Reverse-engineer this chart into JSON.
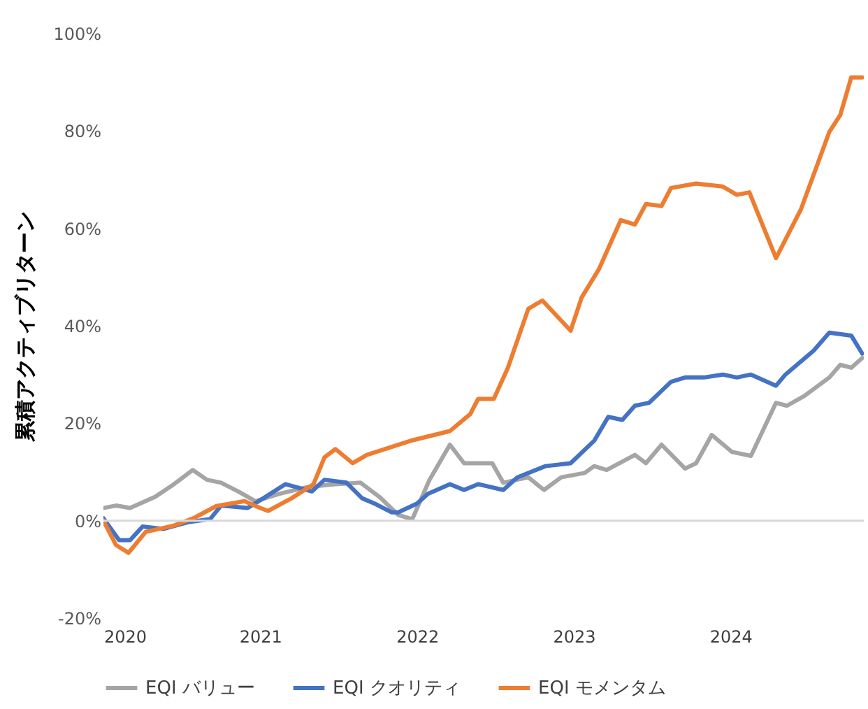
{
  "chart_data": {
    "type": "line",
    "ylabel": "累積アクティブリターン",
    "xlim": [
      2020,
      2024.85
    ],
    "xticks": [
      2020,
      2021,
      2022,
      2023,
      2024
    ],
    "ylim": [
      -20,
      100
    ],
    "yticks": [
      {
        "value": -20,
        "label": "-20%"
      },
      {
        "value": 0,
        "label": "0%"
      },
      {
        "value": 20,
        "label": "20%"
      },
      {
        "value": 40,
        "label": "40%"
      },
      {
        "value": 60,
        "label": "60%"
      },
      {
        "value": 80,
        "label": "80%"
      },
      {
        "value": 100,
        "label": "100%"
      }
    ],
    "grid": false,
    "legend": "bottom",
    "marker": "none",
    "line_style": "solid",
    "ref_lines": [
      {
        "axis": "y",
        "value": 0,
        "color": "#d9d9d9"
      }
    ],
    "series": [
      {
        "name": "EQI バリュー",
        "color": "#a5a5a5",
        "x": [
          2020.0,
          2020.08,
          2020.17,
          2020.33,
          2020.45,
          2020.57,
          2020.66,
          2020.75,
          2020.86,
          2020.97,
          2021.12,
          2021.3,
          2021.48,
          2021.64,
          2021.76,
          2021.88,
          2021.97,
          2022.08,
          2022.21,
          2022.3,
          2022.48,
          2022.55,
          2022.71,
          2022.81,
          2022.92,
          2023.07,
          2023.13,
          2023.21,
          2023.39,
          2023.46,
          2023.56,
          2023.71,
          2023.78,
          2023.88,
          2024.01,
          2024.13,
          2024.29,
          2024.36,
          2024.47,
          2024.63,
          2024.7,
          2024.77,
          2024.84
        ],
        "values": [
          2.6,
          3.1,
          2.6,
          4.9,
          7.5,
          10.4,
          8.4,
          7.8,
          6,
          4,
          5.5,
          6.9,
          7.5,
          7.8,
          4.9,
          1.2,
          0.3,
          8.4,
          15.6,
          11.8,
          11.8,
          7.8,
          8.9,
          6.3,
          8.9,
          9.8,
          11.2,
          10.4,
          13.5,
          11.8,
          15.6,
          10.7,
          11.8,
          17.6,
          14.1,
          13.3,
          24.2,
          23.6,
          25.6,
          29.4,
          32,
          31.4,
          33.4
        ]
      },
      {
        "name": "EQI クオリティ",
        "color": "#4472c4",
        "x": [
          2020.0,
          2020.1,
          2020.17,
          2020.25,
          2020.38,
          2020.54,
          2020.68,
          2020.75,
          2020.92,
          2021.02,
          2021.16,
          2021.33,
          2021.41,
          2021.55,
          2021.65,
          2021.73,
          2021.84,
          2021.88,
          2022.0,
          2022.07,
          2022.21,
          2022.3,
          2022.39,
          2022.55,
          2022.64,
          2022.82,
          2022.98,
          2023.13,
          2023.22,
          2023.31,
          2023.39,
          2023.48,
          2023.62,
          2023.71,
          2023.83,
          2023.95,
          2024.04,
          2024.13,
          2024.29,
          2024.35,
          2024.53,
          2024.63,
          2024.77,
          2024.84
        ],
        "values": [
          0.5,
          -4,
          -4,
          -1.2,
          -1.7,
          -0.3,
          0.3,
          3.1,
          2.6,
          4.6,
          7.5,
          6,
          8.4,
          7.8,
          4.6,
          3.5,
          1.7,
          1.7,
          3.5,
          5.5,
          7.5,
          6.3,
          7.5,
          6.3,
          8.9,
          11.2,
          11.8,
          16.4,
          21.3,
          20.7,
          23.6,
          24.2,
          28.5,
          29.4,
          29.4,
          30,
          29.4,
          30,
          27.7,
          30,
          34.9,
          38.6,
          38,
          34.3
        ]
      },
      {
        "name": "EQI モメンタム",
        "color": "#ed7d31",
        "x": [
          2020.0,
          2020.08,
          2020.16,
          2020.27,
          2020.45,
          2020.58,
          2020.72,
          2020.9,
          2021.0,
          2021.05,
          2021.2,
          2021.34,
          2021.41,
          2021.48,
          2021.59,
          2021.68,
          2021.97,
          2022.21,
          2022.34,
          2022.39,
          2022.49,
          2022.58,
          2022.71,
          2022.8,
          2022.98,
          2023.05,
          2023.16,
          2023.3,
          2023.39,
          2023.46,
          2023.56,
          2023.62,
          2023.78,
          2023.95,
          2024.04,
          2024.12,
          2024.29,
          2024.45,
          2024.63,
          2024.7,
          2024.77,
          2024.84
        ],
        "values": [
          0,
          -5,
          -6.6,
          -2.3,
          -1,
          0.6,
          3,
          4,
          2.6,
          2,
          4.6,
          7.5,
          13,
          14.7,
          11.8,
          13.5,
          16.5,
          18.4,
          21.9,
          25,
          25,
          31.4,
          43.5,
          45.2,
          39,
          45.8,
          51.6,
          61.7,
          60.8,
          65,
          64.6,
          68.3,
          69.2,
          68.6,
          66.9,
          67.4,
          53.9,
          64,
          79.8,
          83.3,
          91,
          91
        ]
      }
    ]
  }
}
